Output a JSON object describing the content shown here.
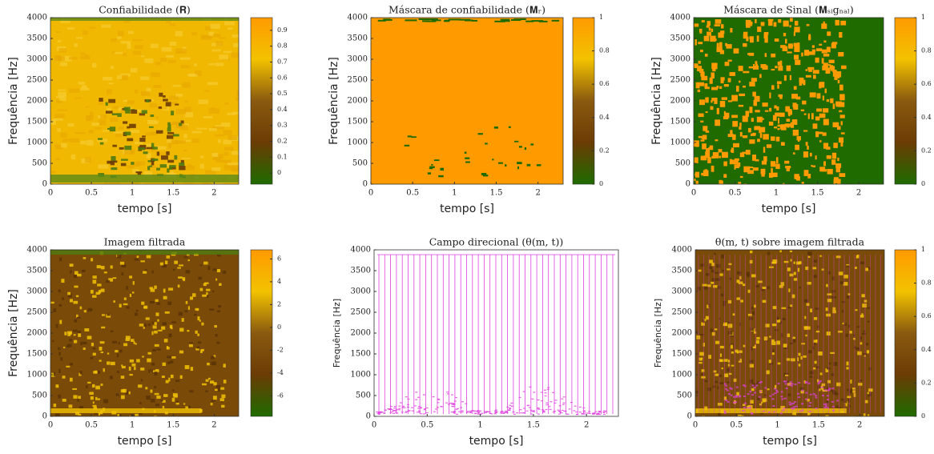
{
  "colormap": [
    "#1f6b00",
    "#6b3c05",
    "#8a5a10",
    "#f2c200",
    "#ff9a00"
  ],
  "chart_data": [
    {
      "type": "heatmap",
      "title": "Confiabilidade (𝐑)",
      "x_label": "tempo [s]",
      "y_label": "Frequência [Hz]",
      "xlim": [
        0,
        2.3
      ],
      "xticks": [
        0,
        0.5,
        1,
        1.5,
        2
      ],
      "ylim": [
        0,
        4000
      ],
      "yticks": [
        0,
        500,
        1000,
        1500,
        2000,
        2500,
        3000,
        3500,
        4000
      ],
      "colorbar": {
        "lim": [
          -0.07,
          0.98
        ],
        "ticks": [
          0,
          0.1,
          0.2,
          0.3,
          0.4,
          0.5,
          0.6,
          0.7,
          0.8,
          0.9
        ]
      }
    },
    {
      "type": "heatmap",
      "title": "Máscara de confiabilidade (𝐌ᵣ)",
      "x_label": "tempo [s]",
      "y_label": "Frequência [Hz]",
      "xlim": [
        0,
        2.3
      ],
      "xticks": [
        0,
        0.5,
        1,
        1.5,
        2
      ],
      "ylim": [
        0,
        4000
      ],
      "yticks": [
        0,
        500,
        1000,
        1500,
        2000,
        2500,
        3000,
        3500,
        4000
      ],
      "colorbar": {
        "lim": [
          0,
          1
        ],
        "ticks": [
          0,
          0.2,
          0.4,
          0.6,
          0.8,
          1
        ]
      }
    },
    {
      "type": "heatmap",
      "title": "Máscara de Sinal (𝐌ₛᵢgₙₐₗ)",
      "x_label": "tempo [s]",
      "y_label": "Frequência [Hz]",
      "xlim": [
        0,
        2.3
      ],
      "xticks": [
        0,
        0.5,
        1,
        1.5,
        2
      ],
      "ylim": [
        0,
        4000
      ],
      "yticks": [
        0,
        500,
        1000,
        1500,
        2000,
        2500,
        3000,
        3500,
        4000
      ],
      "colorbar": {
        "lim": [
          0,
          1
        ],
        "ticks": [
          0,
          0.2,
          0.4,
          0.6,
          0.8,
          1
        ]
      }
    },
    {
      "type": "heatmap",
      "title": "Imagem filtrada",
      "x_label": "tempo [s]",
      "y_label": "Frequência [Hz]",
      "xlim": [
        0,
        2.3
      ],
      "xticks": [
        0,
        0.5,
        1,
        1.5,
        2
      ],
      "ylim": [
        0,
        4000
      ],
      "yticks": [
        0,
        500,
        1000,
        1500,
        2000,
        2500,
        3000,
        3500,
        4000
      ],
      "colorbar": {
        "lim": [
          -7.8,
          6.8
        ],
        "ticks": [
          -6,
          -4,
          -2,
          0,
          2,
          4,
          6
        ]
      }
    },
    {
      "type": "quiver",
      "title": "Campo direcional (θ(m, t))",
      "x_label": "tempo [s]",
      "y_label": "Frequência [Hz]",
      "xlim": [
        0,
        2.3
      ],
      "xticks": [
        0,
        0.5,
        1,
        1.5,
        2
      ],
      "ylim": [
        0,
        4000
      ],
      "yticks": [
        0,
        500,
        1000,
        1500,
        2000,
        2500,
        3000,
        3500,
        4000
      ],
      "color": "#e040e0"
    },
    {
      "type": "heatmap",
      "title": "θ(m, t) sobre imagem filtrada",
      "x_label": "tempo [s]",
      "y_label": "Frequência [Hz]",
      "xlim": [
        0,
        2.3
      ],
      "xticks": [
        0,
        0.5,
        1,
        1.5,
        2
      ],
      "ylim": [
        0,
        4000
      ],
      "yticks": [
        0,
        500,
        1000,
        1500,
        2000,
        2500,
        3000,
        3500,
        4000
      ],
      "colorbar": {
        "lim": [
          0,
          1
        ],
        "ticks": [
          0,
          0.2,
          0.4,
          0.6,
          0.8,
          1
        ]
      },
      "color": "#e040e0"
    }
  ]
}
